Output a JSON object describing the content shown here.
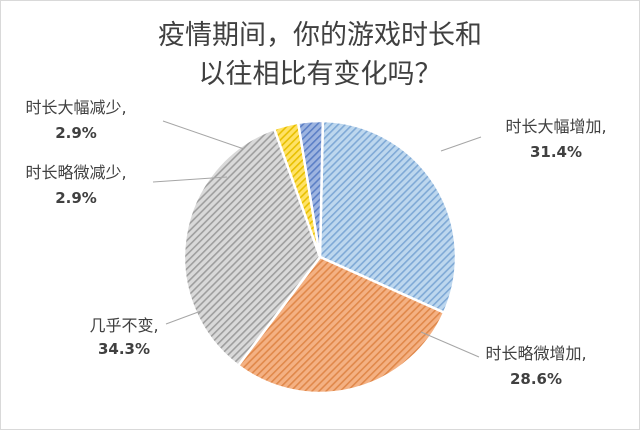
{
  "chart_data": {
    "type": "pie",
    "title_lines": [
      "疫情期间，你的游戏时长和",
      "以往相比有变化吗？"
    ],
    "categories": [
      "时长大幅增加",
      "时长略微增加",
      "几乎不变",
      "时长略微减少",
      "时长大幅减少"
    ],
    "values": [
      31.4,
      28.6,
      34.3,
      2.9,
      2.9
    ],
    "value_labels": [
      "31.4%",
      "28.6%",
      "34.3%",
      "2.9%",
      "2.9%"
    ],
    "label_names": [
      "时长大幅增加,",
      "时长略微增加,",
      "几乎不变,",
      "时长略微减少,",
      "时长大幅减少,"
    ],
    "unit": "%",
    "colors": [
      "#bdd7ee",
      "#f4b183",
      "#d9d9d9",
      "#ffe266",
      "#9db4e0"
    ],
    "hatch_colors": [
      "#7fa9d6",
      "#e0884a",
      "#9e9e9e",
      "#e8c000",
      "#5b7fc6"
    ],
    "fill_pattern": "diagonal-hatch",
    "legend": "none"
  }
}
